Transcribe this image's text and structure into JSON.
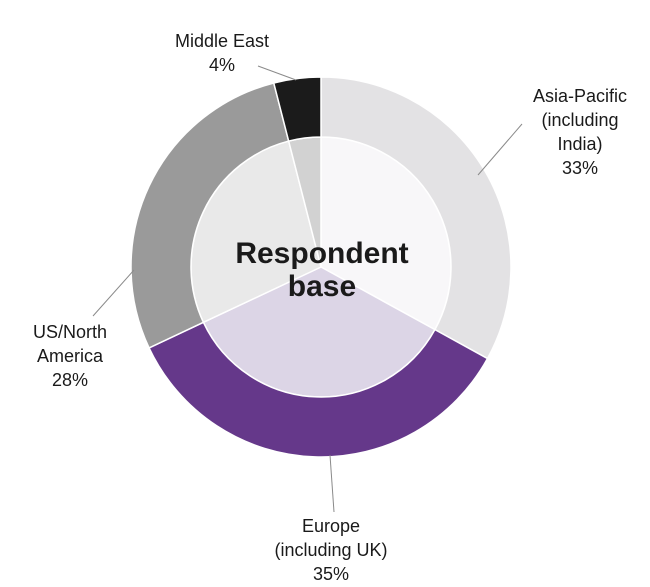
{
  "chart_data": {
    "type": "pie",
    "style": "donut",
    "center_label": [
      "Respondent",
      "base"
    ],
    "slices": [
      {
        "label_lines": [
          "Asia-Pacific",
          "(including",
          "India)"
        ],
        "value": 33,
        "value_label": "33%",
        "color": "#e3e2e4",
        "inner_color": "#f8f7f9"
      },
      {
        "label_lines": [
          "Europe",
          "(including UK)"
        ],
        "value": 35,
        "value_label": "35%",
        "color": "#65388a",
        "inner_color": "#dcd5e6"
      },
      {
        "label_lines": [
          "US/North",
          "America"
        ],
        "value": 28,
        "value_label": "28%",
        "color": "#9a9a9a",
        "inner_color": "#e9e9e9"
      },
      {
        "label_lines": [
          "Middle East"
        ],
        "value": 4,
        "value_label": "4%",
        "color": "#1b1b1b",
        "inner_color": "#d2d2d2"
      }
    ]
  }
}
